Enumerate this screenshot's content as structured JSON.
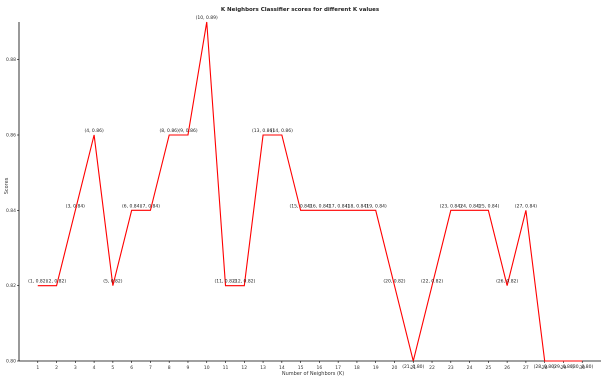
{
  "chart_data": {
    "type": "line",
    "title": "K Neighbors Classifier scores for different K values",
    "xlabel": "Number of Neighbors (K)",
    "ylabel": "Scores",
    "x": [
      1,
      2,
      3,
      4,
      5,
      6,
      7,
      8,
      9,
      10,
      11,
      12,
      13,
      14,
      15,
      16,
      17,
      18,
      19,
      20,
      21,
      22,
      23,
      24,
      25,
      26,
      27,
      28,
      29,
      30
    ],
    "y": [
      0.82,
      0.82,
      0.84,
      0.86,
      0.82,
      0.84,
      0.84,
      0.86,
      0.86,
      0.89,
      0.82,
      0.82,
      0.86,
      0.86,
      0.84,
      0.84,
      0.84,
      0.84,
      0.84,
      0.82,
      0.8,
      0.82,
      0.84,
      0.84,
      0.84,
      0.82,
      0.84,
      0.8,
      0.8,
      0.8
    ],
    "data_labels": [
      "(1, 0.82)",
      "(2, 0.82)",
      "(3, 0.84)",
      "(4, 0.86)",
      "(5, 0.82)",
      "(6, 0.84)",
      "(7, 0.84)",
      "(8, 0.86)",
      "(9, 0.86)",
      "(10, 0.89)",
      "(11, 0.82)",
      "(12, 0.82)",
      "(13, 0.86)",
      "(14, 0.86)",
      "(15, 0.84)",
      "(16, 0.84)",
      "(17, 0.84)",
      "(18, 0.84)",
      "(19, 0.84)",
      "(20, 0.82)",
      "(21, 0.80)",
      "(22, 0.82)",
      "(23, 0.84)",
      "(24, 0.84)",
      "(25, 0.84)",
      "(26, 0.82)",
      "(27, 0.84)",
      "(28, 0.80)",
      "(29, 0.80)",
      "(30, 0.80)"
    ],
    "xticks": [
      1,
      2,
      3,
      4,
      5,
      6,
      7,
      8,
      9,
      10,
      11,
      12,
      13,
      14,
      15,
      16,
      17,
      18,
      19,
      20,
      21,
      22,
      23,
      24,
      25,
      26,
      27,
      28,
      29,
      30
    ],
    "yticks": [
      0.8,
      0.82,
      0.84,
      0.86,
      0.88
    ],
    "ytick_labels": [
      "0.80",
      "0.82",
      "0.84",
      "0.86",
      "0.88"
    ],
    "xlim": [
      0,
      31
    ],
    "ylim": [
      0.8,
      0.89
    ],
    "grid": false,
    "line_color": "#ff0000"
  }
}
